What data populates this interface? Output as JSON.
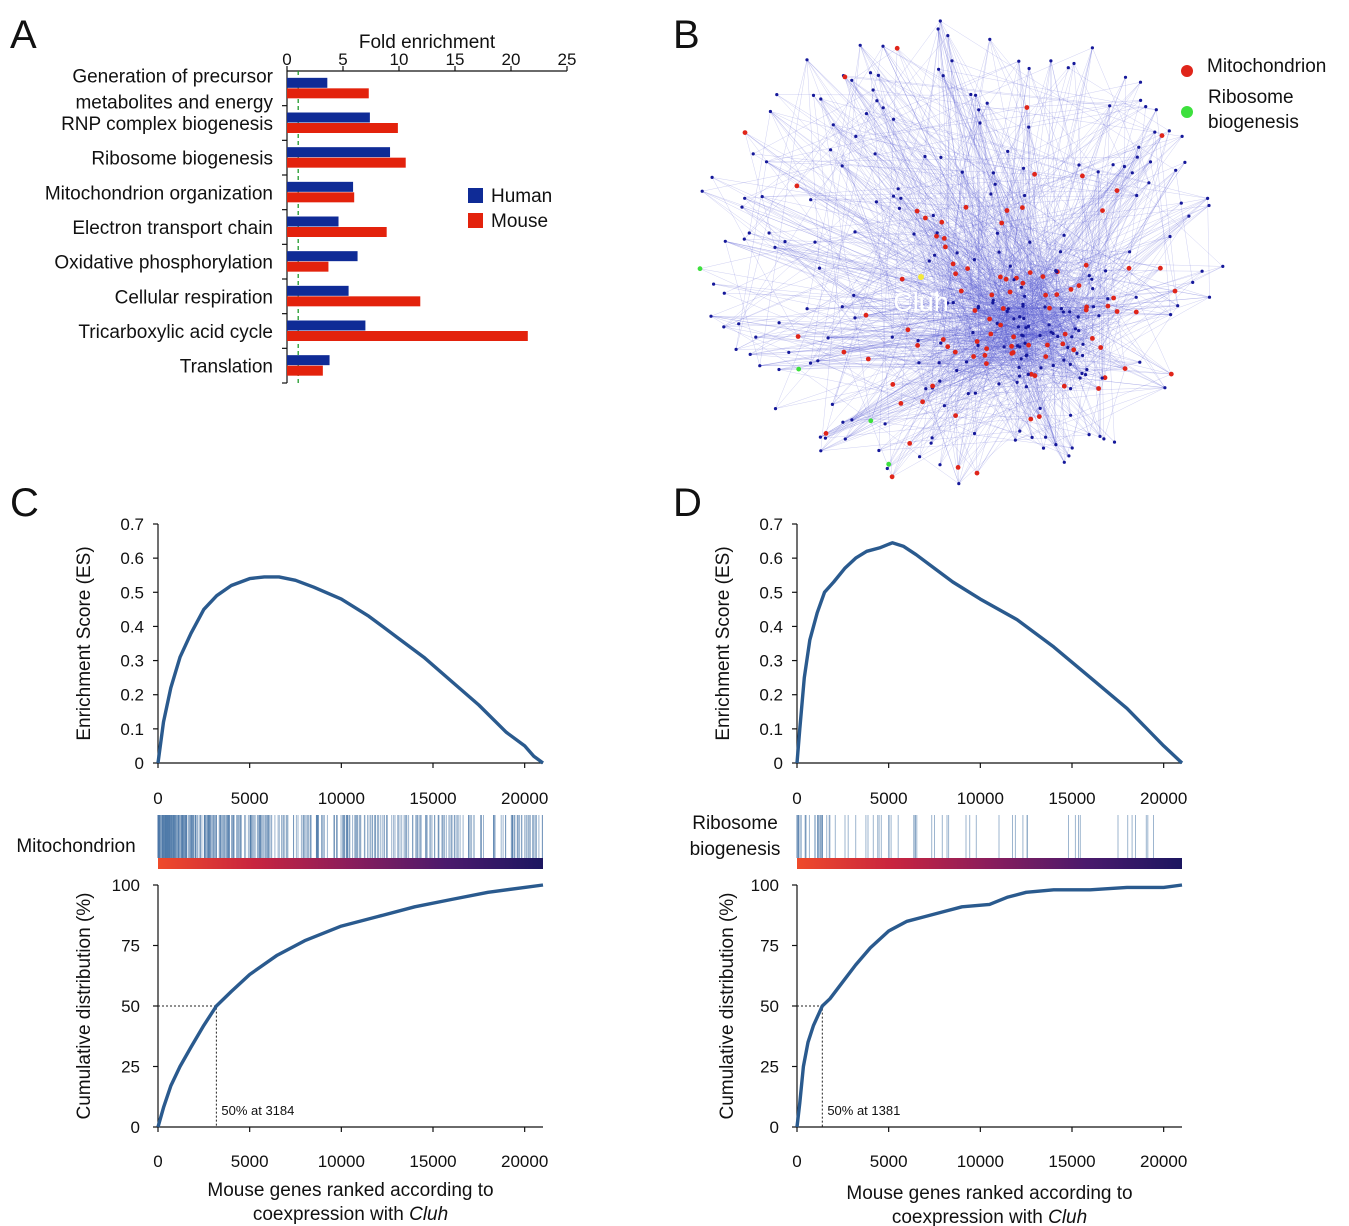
{
  "panels": {
    "A": "A",
    "B": "B",
    "C": "C",
    "D": "D"
  },
  "colors": {
    "human": "#0f2b96",
    "mouse": "#e3220c",
    "curve": "#2a5a8e",
    "mito_node": "#e0251a",
    "ribo_node": "#3de03d",
    "cluh_node": "#f3e83a",
    "network_node": "#15189a",
    "network_edge": "#5357d0"
  },
  "chart_data": [
    {
      "id": "A",
      "type": "bar",
      "orientation": "horizontal",
      "title": "Fold enrichment",
      "categories": [
        "Generation of precursor metabolites and energy",
        "RNP complex biogenesis",
        "Ribosome biogenesis",
        "Mitochondrion organization",
        "Electron transport chain",
        "Oxidative phosphorylation",
        "Cellular respiration",
        "Tricarboxylic acid cycle",
        "Translation"
      ],
      "category_lines": [
        [
          "Generation of precursor",
          "metabolites and energy"
        ],
        [
          "RNP complex biogenesis"
        ],
        [
          "Ribosome biogenesis"
        ],
        [
          "Mitochondrion organization"
        ],
        [
          "Electron transport chain"
        ],
        [
          "Oxidative phosphorylation"
        ],
        [
          "Cellular respiration"
        ],
        [
          "Tricarboxylic acid cycle"
        ],
        [
          "Translation"
        ]
      ],
      "series": [
        {
          "name": "Human",
          "values": [
            3.6,
            7.4,
            9.2,
            5.9,
            4.6,
            6.3,
            5.5,
            7.0,
            3.8
          ]
        },
        {
          "name": "Mouse",
          "values": [
            7.3,
            9.9,
            10.6,
            6.0,
            8.9,
            3.7,
            11.9,
            21.5,
            3.2
          ]
        }
      ],
      "xlim": [
        0,
        25
      ],
      "xticks": [
        0,
        5,
        10,
        15,
        20,
        25
      ],
      "reference_line": 1,
      "legend": "right"
    },
    {
      "id": "B",
      "type": "network",
      "center_label": "Cluh",
      "legend": [
        {
          "name": "Mitochondrion",
          "color": "#e0251a"
        },
        {
          "name": "Ribosome biogenesis",
          "color": "#3de03d",
          "lines": [
            "Ribosome",
            "biogenesis"
          ]
        }
      ]
    },
    {
      "id": "C",
      "type": "line",
      "ylabel": "Enrichment Score (ES)",
      "ylim": [
        0,
        0.7
      ],
      "yticks": [
        "0",
        "0.1",
        "0.2",
        "0.3",
        "0.4",
        "0.5",
        "0.6",
        "0.7"
      ],
      "xlim": [
        0,
        21000
      ],
      "xticks": [
        "0",
        "5000",
        "10000",
        "15000",
        "20000"
      ],
      "es_curve": {
        "x": [
          0,
          300,
          700,
          1200,
          1800,
          2500,
          3200,
          4000,
          5000,
          5800,
          6600,
          7500,
          8500,
          10000,
          11500,
          13000,
          14500,
          16000,
          17500,
          19000,
          20000,
          20500,
          21000
        ],
        "y": [
          0,
          0.12,
          0.22,
          0.31,
          0.38,
          0.45,
          0.49,
          0.52,
          0.54,
          0.545,
          0.545,
          0.535,
          0.515,
          0.48,
          0.43,
          0.37,
          0.31,
          0.24,
          0.17,
          0.09,
          0.05,
          0.02,
          0
        ]
      },
      "gene_set_label": "Mitochondrion",
      "cdf_ylabel": "Cumulative distribution (%)",
      "cdf_ylim": [
        0,
        100
      ],
      "cdf_yticks": [
        "0",
        "25",
        "50",
        "75",
        "100"
      ],
      "cdf_curve": {
        "x": [
          0,
          300,
          700,
          1200,
          1800,
          2500,
          3184,
          4000,
          5000,
          6500,
          8000,
          10000,
          12000,
          14000,
          16000,
          18000,
          20000,
          21000
        ],
        "y": [
          0,
          8,
          17,
          25,
          33,
          42,
          50,
          56,
          63,
          71,
          77,
          83,
          87,
          91,
          94,
          97,
          99,
          100
        ]
      },
      "median_x": 3184,
      "median_note": "50% at 3184",
      "xlabel_line1": "Mouse genes ranked according to",
      "xlabel_line2_prefix": "coexpression with ",
      "xlabel_line2_gene": "Cluh"
    },
    {
      "id": "D",
      "type": "line",
      "ylabel": "Enrichment Score (ES)",
      "ylim": [
        0,
        0.7
      ],
      "yticks": [
        "0",
        "0.1",
        "0.2",
        "0.3",
        "0.4",
        "0.5",
        "0.6",
        "0.7"
      ],
      "xlim": [
        0,
        21000
      ],
      "xticks": [
        "0",
        "5000",
        "10000",
        "15000",
        "20000"
      ],
      "es_curve": {
        "x": [
          0,
          150,
          400,
          700,
          1100,
          1500,
          2000,
          2600,
          3200,
          3800,
          4500,
          5200,
          5800,
          6500,
          7500,
          8500,
          10000,
          12000,
          14000,
          16000,
          18000,
          20000,
          21000
        ],
        "y": [
          0,
          0.1,
          0.25,
          0.36,
          0.44,
          0.5,
          0.53,
          0.57,
          0.6,
          0.62,
          0.63,
          0.645,
          0.635,
          0.61,
          0.57,
          0.53,
          0.48,
          0.42,
          0.34,
          0.25,
          0.16,
          0.05,
          0
        ]
      },
      "gene_set_label": "Ribosome biogenesis",
      "gene_set_lines": [
        "Ribosome",
        "biogenesis"
      ],
      "cdf_ylabel": "Cumulative distribution (%)",
      "cdf_ylim": [
        0,
        100
      ],
      "cdf_yticks": [
        "0",
        "25",
        "50",
        "75",
        "100"
      ],
      "cdf_curve": {
        "x": [
          0,
          150,
          350,
          600,
          900,
          1200,
          1381,
          1800,
          2500,
          3200,
          4000,
          5000,
          6000,
          7000,
          8000,
          9000,
          10500,
          11500,
          12500,
          14000,
          16000,
          18000,
          20000,
          21000
        ],
        "y": [
          0,
          10,
          25,
          35,
          42,
          47,
          50,
          53,
          60,
          67,
          74,
          81,
          85,
          87,
          89,
          91,
          92,
          95,
          97,
          98,
          98,
          99,
          99,
          100
        ]
      },
      "median_x": 1381,
      "median_note": "50% at 1381",
      "xlabel_line1": "Mouse genes ranked according to",
      "xlabel_line2_prefix": "coexpression with ",
      "xlabel_line2_gene": "Cluh"
    }
  ]
}
